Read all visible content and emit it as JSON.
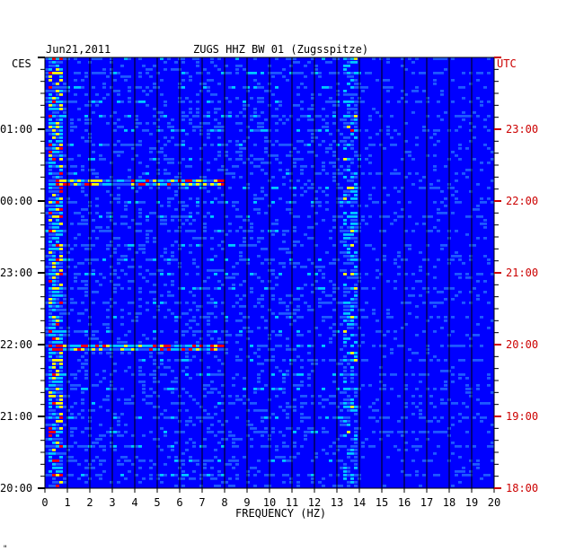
{
  "header": {
    "date": "Jun21,2011",
    "station": "ZUGS HHZ BW 01 (Zugsspitze)"
  },
  "left_axis": {
    "label": "CES",
    "color": "#000000"
  },
  "right_axis": {
    "label": "UTC",
    "color": "#cc0000"
  },
  "corner_mark": "\"",
  "chart_data": {
    "type": "heatmap",
    "title": "ZUGS HHZ BW 01 (Zugsspitze)",
    "xlabel": "FREQUENCY (HZ)",
    "xlim": [
      0,
      20
    ],
    "x_ticks": [
      "0",
      "1",
      "2",
      "3",
      "4",
      "5",
      "6",
      "7",
      "8",
      "9",
      "10",
      "11",
      "12",
      "13",
      "14",
      "15",
      "16",
      "17",
      "18",
      "19",
      "20"
    ],
    "y_ticks_left": [
      "01:00",
      "00:00",
      "23:00",
      "22:00",
      "21:00",
      "20:00"
    ],
    "y_ticks_right": [
      "23:00",
      "22:00",
      "21:00",
      "20:00",
      "19:00",
      "18:00"
    ],
    "time_range_hours": 6,
    "colorscale": [
      "#00008b",
      "#0000ff",
      "#1e5aff",
      "#00c8ff",
      "#ffff00",
      "#ff0000"
    ],
    "features": [
      {
        "name": "low-frequency energy",
        "freq_hz": [
          0.1,
          0.8
        ]
      },
      {
        "name": "persistent spectral line",
        "freq_hz": [
          13.3,
          13.9
        ]
      },
      {
        "name": "broadband event",
        "time_cest": "21:56",
        "freq_hz": [
          0.5,
          8
        ]
      },
      {
        "name": "broadband event",
        "time_cest": "00:14",
        "freq_hz": [
          0.5,
          8
        ]
      }
    ]
  }
}
